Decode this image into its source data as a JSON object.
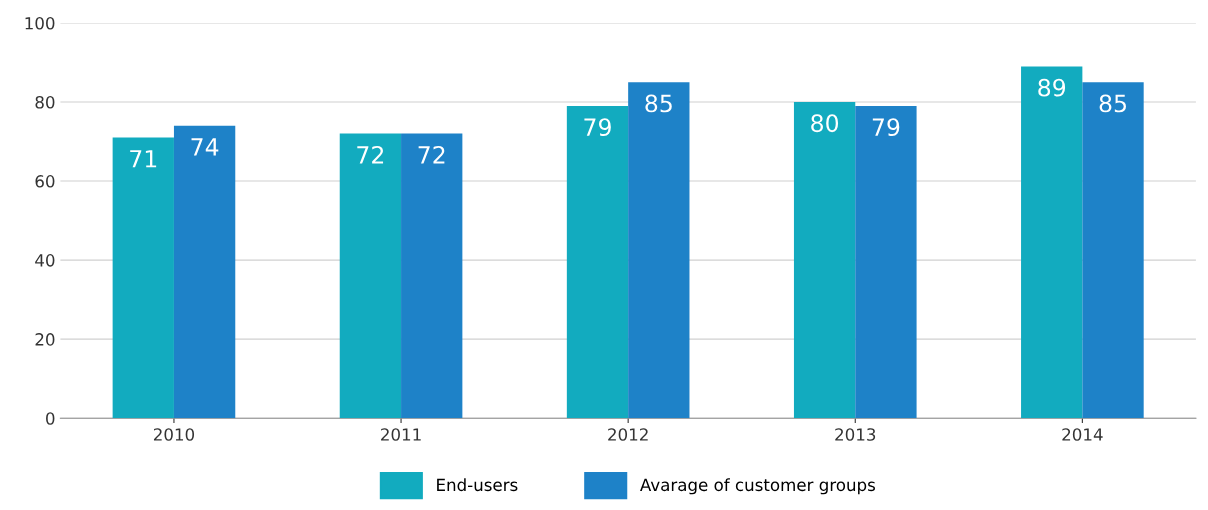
{
  "chart_data": {
    "type": "bar",
    "categories": [
      "2010",
      "2011",
      "2012",
      "2013",
      "2014"
    ],
    "series": [
      {
        "name": "End-users",
        "color": "#12abbf",
        "values": [
          71,
          72,
          79,
          80,
          89
        ]
      },
      {
        "name": "Avarage of customer groups",
        "color": "#1e82c8",
        "values": [
          74,
          72,
          85,
          79,
          85
        ]
      }
    ],
    "ylim": [
      0,
      100
    ],
    "yticks": [
      0,
      20,
      40,
      60,
      80,
      100
    ],
    "grid": "y",
    "legend": "bottom",
    "data_labels": true
  }
}
